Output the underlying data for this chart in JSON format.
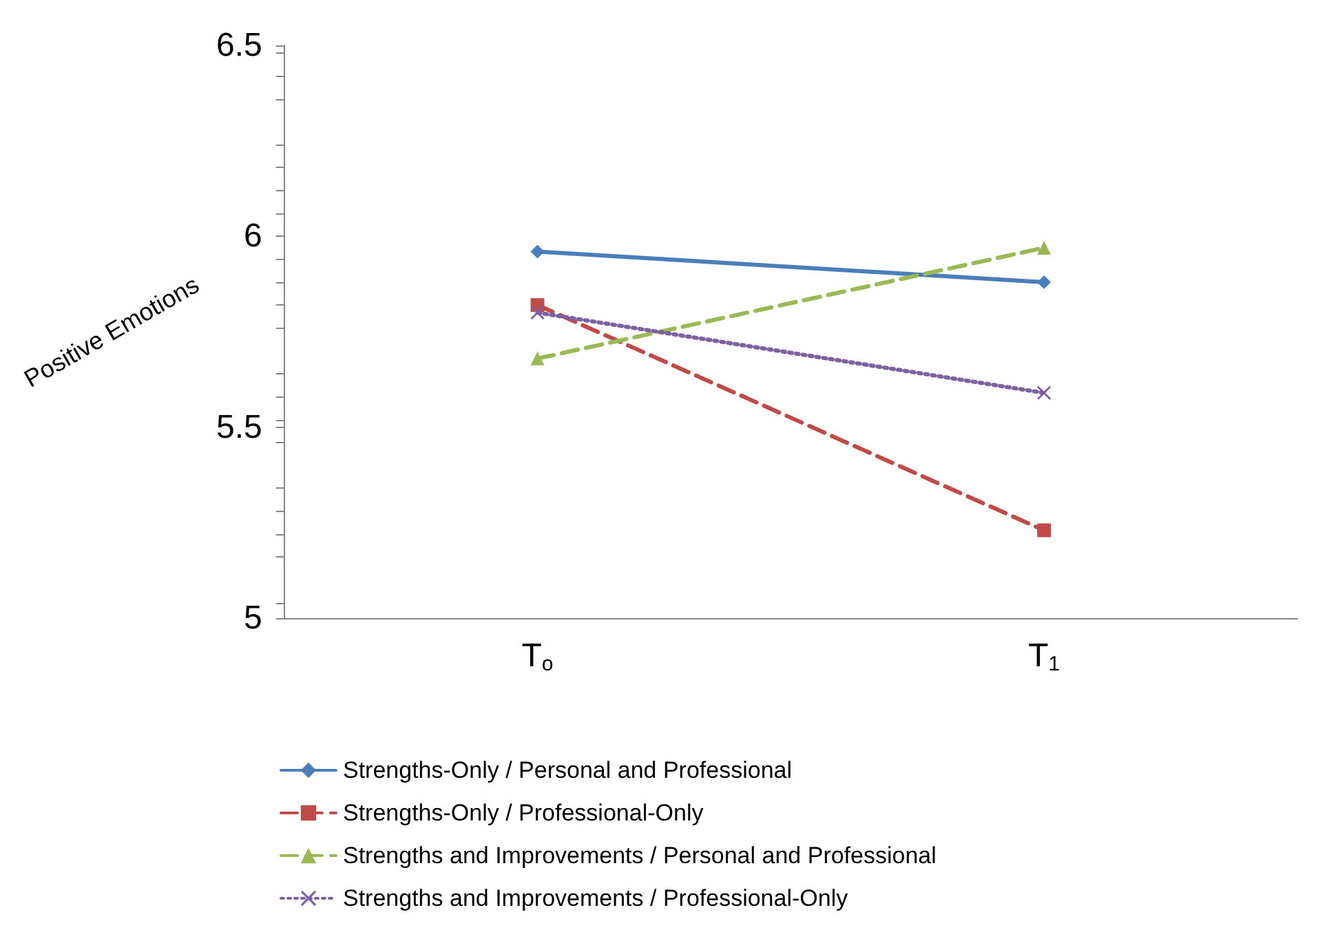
{
  "chart_data": {
    "type": "line",
    "ylabel": "Positive Emotions",
    "categories": [
      "T$_{o}$",
      "T$_{1}$"
    ],
    "series": [
      {
        "name": "Strengths-Only / Personal and Professional",
        "color": "#4a7ebb",
        "values": [
          5.96,
          5.88
        ],
        "marker": "diamond",
        "line_style": "solid"
      },
      {
        "name": "Strengths-Only / Professional-Only",
        "color": "#be4b48",
        "values": [
          5.82,
          5.23
        ],
        "marker": "square",
        "line_style": "dashed"
      },
      {
        "name": "Strengths and Improvements / Personal and Professional",
        "color": "#98b954",
        "values": [
          5.68,
          5.97
        ],
        "marker": "triangle",
        "line_style": "dashed"
      },
      {
        "name": "Strengths and Improvements / Professional-Only",
        "color": "#7d60a0",
        "values": [
          5.8,
          5.59
        ],
        "marker": "cross",
        "line_style": "dotted"
      }
    ],
    "ylim": [
      5,
      6.5
    ],
    "yticks": [
      5,
      5.5,
      6,
      6.5
    ],
    "grid": false,
    "legend": "bottom"
  }
}
